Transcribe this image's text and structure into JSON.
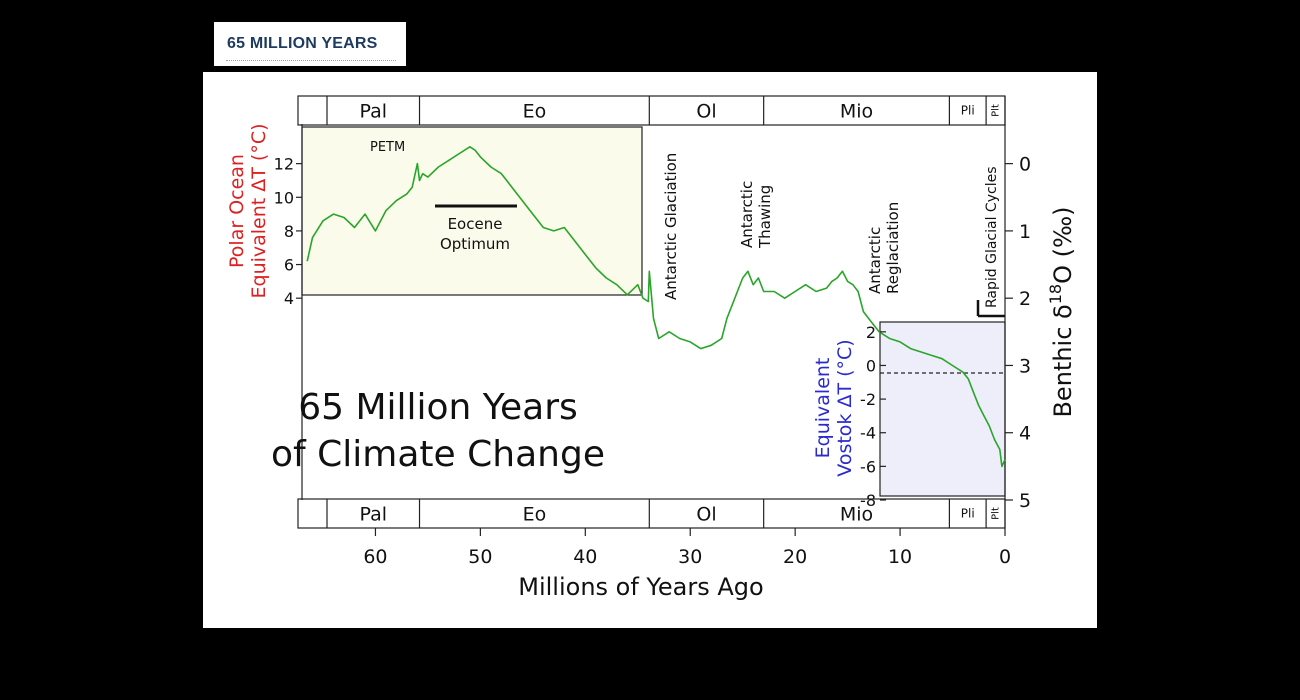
{
  "page": {
    "header_tab": "65 MILLION YEARS"
  },
  "chart_data": {
    "type": "line",
    "title": "65 Million Years of Climate Change",
    "title_lines": [
      "65 Million Years",
      "of Climate Change"
    ],
    "xlabel": "Millions of Years Ago",
    "xlim": [
      67,
      0
    ],
    "xticks": [
      60,
      50,
      40,
      30,
      20,
      10,
      0
    ],
    "y_right": {
      "label_main": "Benthic δ",
      "label_sup": "18",
      "label_end": "O (‰)",
      "lim": [
        -0.5,
        5
      ],
      "ticks": [
        0,
        1,
        2,
        3,
        4,
        5
      ]
    },
    "y_left_top": {
      "label_lines": [
        "Polar Ocean",
        "Equivalent ΔT (°C)"
      ],
      "ticks": [
        12,
        10,
        8,
        6,
        4
      ],
      "color": "#e02020"
    },
    "y_left_bottom": {
      "label_lines": [
        "Equivalent",
        "Vostok ΔT (°C)"
      ],
      "ticks": [
        2,
        0,
        -2,
        -4,
        -6,
        -8
      ],
      "color": "#2a2ad0"
    },
    "epochs": [
      {
        "label": "Pal",
        "start": 65.5,
        "end": 55.8
      },
      {
        "label": "Eo",
        "start": 55.8,
        "end": 33.9
      },
      {
        "label": "Ol",
        "start": 33.9,
        "end": 23.0
      },
      {
        "label": "Mio",
        "start": 23.0,
        "end": 5.3
      },
      {
        "label": "Pli",
        "start": 5.3,
        "end": 1.8
      },
      {
        "label": "Plt",
        "start": 1.8,
        "end": 0
      }
    ],
    "annotations": {
      "petm": "PETM",
      "eocene_optimum_lines": [
        "Eocene",
        "Optimum"
      ],
      "antarctic_glaciation": "Antarctic Glaciation",
      "antarctic_thawing_lines": [
        "Antarctic",
        "Thawing"
      ],
      "antarctic_reglaciation_lines": [
        "Antarctic",
        "Reglaciation"
      ],
      "rapid_glacial_cycles": "Rapid Glacial Cycles"
    },
    "series": [
      {
        "color": "#2aa52a",
        "x": [
          66.5,
          66,
          65,
          64,
          63,
          62,
          61,
          60,
          59,
          58,
          57,
          56.5,
          56,
          55.8,
          55.5,
          55,
          54,
          53,
          52,
          51,
          50.5,
          50,
          49,
          48,
          47,
          46,
          45,
          44,
          43,
          42,
          41,
          40,
          39,
          38,
          37,
          36,
          35,
          34.5,
          34,
          33.9,
          33.5,
          33,
          32,
          31,
          30,
          29,
          28,
          27,
          26.5,
          26,
          25.5,
          25,
          24.5,
          24,
          23.5,
          23,
          22,
          21,
          20,
          19,
          18,
          17,
          16.5,
          16,
          15.5,
          15,
          14.5,
          14,
          13.5,
          13,
          12.5,
          12,
          11,
          10,
          9,
          8,
          7,
          6,
          5,
          4,
          3.5,
          3,
          2.5,
          2,
          1.5,
          1,
          0.5,
          0.3,
          0
        ],
        "values": [
          1.45,
          1.1,
          0.85,
          0.75,
          0.8,
          0.95,
          0.75,
          1.0,
          0.7,
          0.55,
          0.45,
          0.35,
          0.0,
          0.25,
          0.15,
          0.2,
          0.05,
          -0.05,
          -0.15,
          -0.25,
          -0.2,
          -0.1,
          0.05,
          0.15,
          0.35,
          0.55,
          0.75,
          0.95,
          1.0,
          0.95,
          1.15,
          1.35,
          1.55,
          1.7,
          1.8,
          1.95,
          1.8,
          2.0,
          2.05,
          1.6,
          2.3,
          2.6,
          2.5,
          2.6,
          2.65,
          2.75,
          2.7,
          2.6,
          2.3,
          2.1,
          1.9,
          1.7,
          1.6,
          1.8,
          1.7,
          1.9,
          1.9,
          2.0,
          1.9,
          1.8,
          1.9,
          1.85,
          1.75,
          1.7,
          1.6,
          1.75,
          1.8,
          1.9,
          2.2,
          2.3,
          2.4,
          2.5,
          2.6,
          2.65,
          2.75,
          2.8,
          2.85,
          2.9,
          3.0,
          3.1,
          3.2,
          3.4,
          3.6,
          3.75,
          3.9,
          4.1,
          4.25,
          4.5,
          4.4
        ]
      }
    ],
    "grid": false
  }
}
